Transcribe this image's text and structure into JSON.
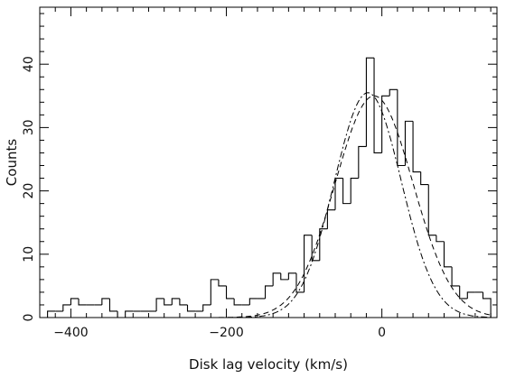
{
  "chart_data": {
    "type": "histogram",
    "title": "",
    "xlabel": "Disk lag velocity (km/s)",
    "ylabel": "Counts",
    "xlim": [
      -440,
      148
    ],
    "ylim": [
      0,
      49
    ],
    "grid": false,
    "x_ticks": [
      -400,
      -200,
      0
    ],
    "y_ticks": [
      0,
      10,
      20,
      30,
      40
    ],
    "histogram": {
      "bin_width": 10,
      "bins": [
        {
          "x0": -430,
          "y": 1
        },
        {
          "x0": -420,
          "y": 1
        },
        {
          "x0": -410,
          "y": 2
        },
        {
          "x0": -400,
          "y": 3
        },
        {
          "x0": -390,
          "y": 2
        },
        {
          "x0": -380,
          "y": 2
        },
        {
          "x0": -370,
          "y": 2
        },
        {
          "x0": -360,
          "y": 3
        },
        {
          "x0": -350,
          "y": 1
        },
        {
          "x0": -340,
          "y": 0
        },
        {
          "x0": -330,
          "y": 1
        },
        {
          "x0": -320,
          "y": 1
        },
        {
          "x0": -310,
          "y": 1
        },
        {
          "x0": -300,
          "y": 1
        },
        {
          "x0": -290,
          "y": 3
        },
        {
          "x0": -280,
          "y": 2
        },
        {
          "x0": -270,
          "y": 3
        },
        {
          "x0": -260,
          "y": 2
        },
        {
          "x0": -250,
          "y": 1
        },
        {
          "x0": -240,
          "y": 1
        },
        {
          "x0": -230,
          "y": 2
        },
        {
          "x0": -220,
          "y": 6
        },
        {
          "x0": -210,
          "y": 5
        },
        {
          "x0": -200,
          "y": 3
        },
        {
          "x0": -190,
          "y": 2
        },
        {
          "x0": -180,
          "y": 2
        },
        {
          "x0": -170,
          "y": 3
        },
        {
          "x0": -160,
          "y": 3
        },
        {
          "x0": -150,
          "y": 5
        },
        {
          "x0": -140,
          "y": 7
        },
        {
          "x0": -130,
          "y": 6
        },
        {
          "x0": -120,
          "y": 7
        },
        {
          "x0": -110,
          "y": 4
        },
        {
          "x0": -100,
          "y": 13
        },
        {
          "x0": -90,
          "y": 9
        },
        {
          "x0": -80,
          "y": 14
        },
        {
          "x0": -70,
          "y": 17
        },
        {
          "x0": -60,
          "y": 22
        },
        {
          "x0": -50,
          "y": 18
        },
        {
          "x0": -40,
          "y": 22
        },
        {
          "x0": -30,
          "y": 27
        },
        {
          "x0": -20,
          "y": 41
        },
        {
          "x0": -10,
          "y": 26
        },
        {
          "x0": 0,
          "y": 35
        },
        {
          "x0": 10,
          "y": 36
        },
        {
          "x0": 20,
          "y": 24
        },
        {
          "x0": 30,
          "y": 31
        },
        {
          "x0": 40,
          "y": 23
        },
        {
          "x0": 50,
          "y": 21
        },
        {
          "x0": 60,
          "y": 13
        },
        {
          "x0": 70,
          "y": 12
        },
        {
          "x0": 80,
          "y": 8
        },
        {
          "x0": 90,
          "y": 5
        },
        {
          "x0": 100,
          "y": 3
        },
        {
          "x0": 110,
          "y": 4
        },
        {
          "x0": 120,
          "y": 4
        },
        {
          "x0": 130,
          "y": 3
        }
      ]
    },
    "fits": [
      {
        "style": "dashed",
        "shape": "gaussian",
        "amplitude": 35,
        "center": -10,
        "sigma": 50
      },
      {
        "style": "dash-dot",
        "shape": "gaussian",
        "amplitude": 35.5,
        "center": -18,
        "sigma": 43
      }
    ]
  }
}
